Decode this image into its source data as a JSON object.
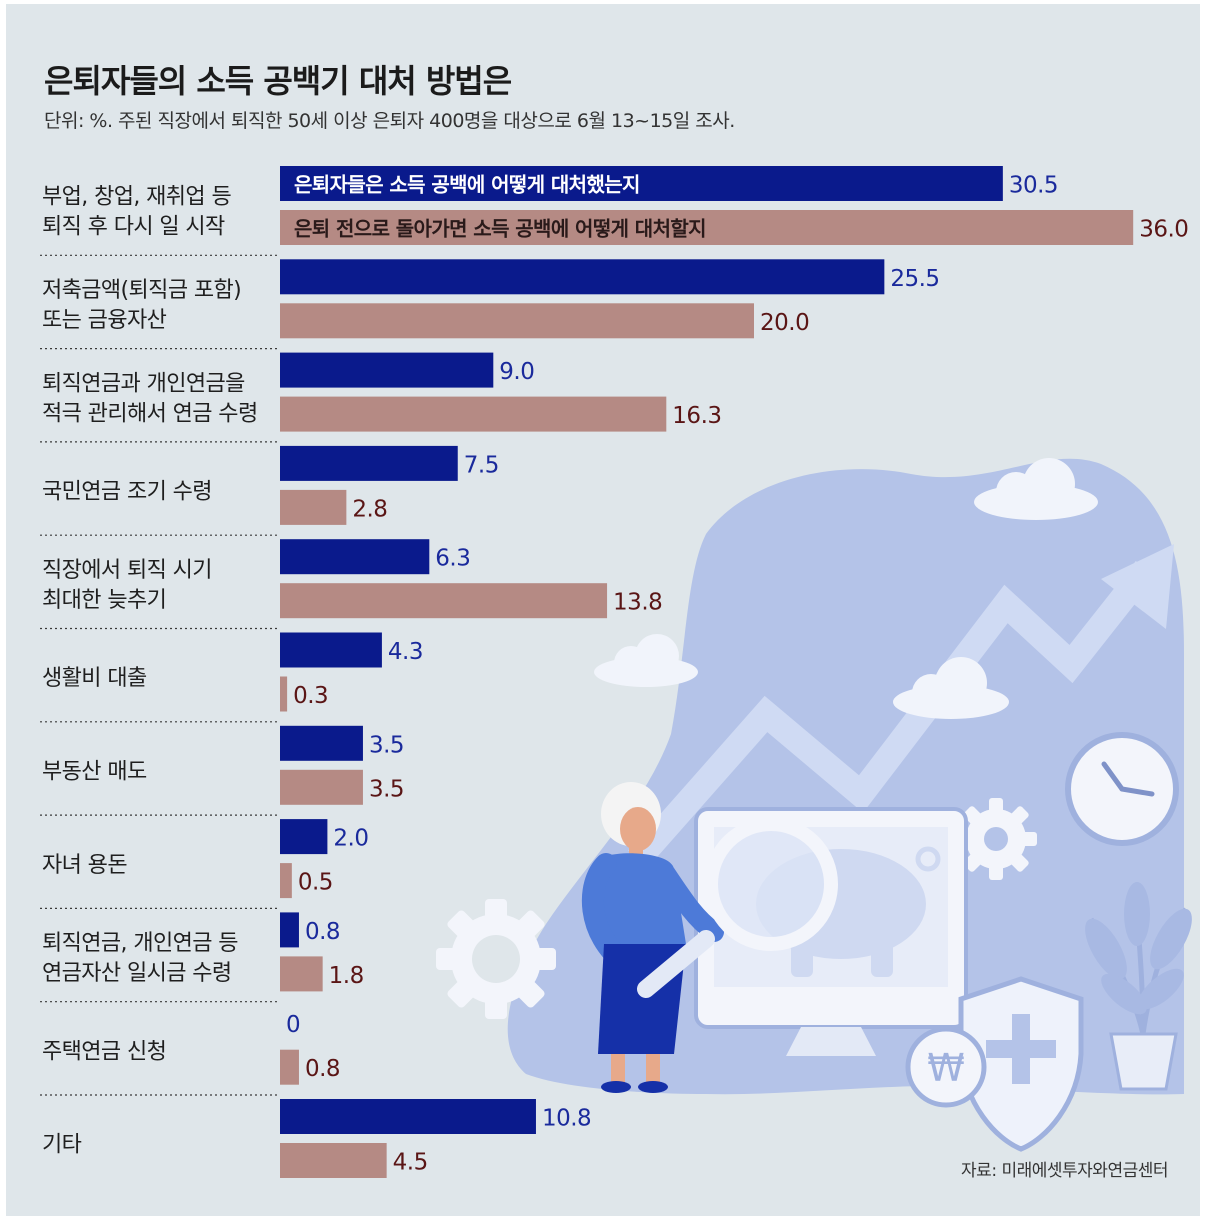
{
  "title": "은퇴자들의 소득 공백기 대처 방법은",
  "subtitle": "단위: %. 주된 직장에서 퇴직한 50세 이상 은퇴자 400명을 대상으로 6월 13~15일 조사.",
  "source": "자료: 미래에셋투자와연금센터",
  "colors": {
    "series1": "#0a1a8c",
    "series2": "#b58a84",
    "series1_label": "#1a2a9c",
    "series2_label": "#5a1515",
    "background": "#dfe6ea",
    "illustration": "#b4c3e8"
  },
  "icons": [
    "gear-icon",
    "clock-icon",
    "cloud-icon",
    "shield-icon",
    "won-coin-icon",
    "magnifier-icon",
    "piggy-bank-icon",
    "trend-arrow-icon",
    "plant-icon"
  ],
  "chart_data": {
    "type": "bar",
    "orientation": "horizontal",
    "unit": "%",
    "categories": [
      [
        "부업, 창업, 재취업 등",
        "퇴직 후 다시 일 시작"
      ],
      [
        "저축금액(퇴직금 포함)",
        "또는 금융자산"
      ],
      [
        "퇴직연금과 개인연금을",
        "적극 관리해서 연금 수령"
      ],
      [
        "국민연금 조기 수령"
      ],
      [
        "직장에서 퇴직 시기",
        "최대한 늦추기"
      ],
      [
        "생활비 대출"
      ],
      [
        "부동산 매도"
      ],
      [
        "자녀 용돈"
      ],
      [
        "퇴직연금, 개인연금 등",
        "연금자산 일시금 수령"
      ],
      [
        "주택연금 신청"
      ],
      [
        "기타"
      ]
    ],
    "series": [
      {
        "name": "은퇴자들은 소득 공백에 어떻게 대처했는지",
        "values": [
          30.5,
          25.5,
          9.0,
          7.5,
          6.3,
          4.3,
          3.5,
          2.0,
          0.8,
          0,
          10.8
        ],
        "labels": [
          "30.5",
          "25.5",
          "9.0",
          "7.5",
          "6.3",
          "4.3",
          "3.5",
          "2.0",
          "0.8",
          "0",
          "10.8"
        ]
      },
      {
        "name": "은퇴 전으로 돌아가면 소득 공백에 어떻게 대처할지",
        "values": [
          36.0,
          20.0,
          16.3,
          2.8,
          13.8,
          0.3,
          3.5,
          0.5,
          1.8,
          0.8,
          4.5
        ],
        "labels": [
          "36.0",
          "20.0",
          "16.3",
          "2.8",
          "13.8",
          "0.3",
          "3.5",
          "0.5",
          "1.8",
          "0.8",
          "4.5"
        ]
      }
    ],
    "legend": "inside-first-bars",
    "grid": false
  }
}
